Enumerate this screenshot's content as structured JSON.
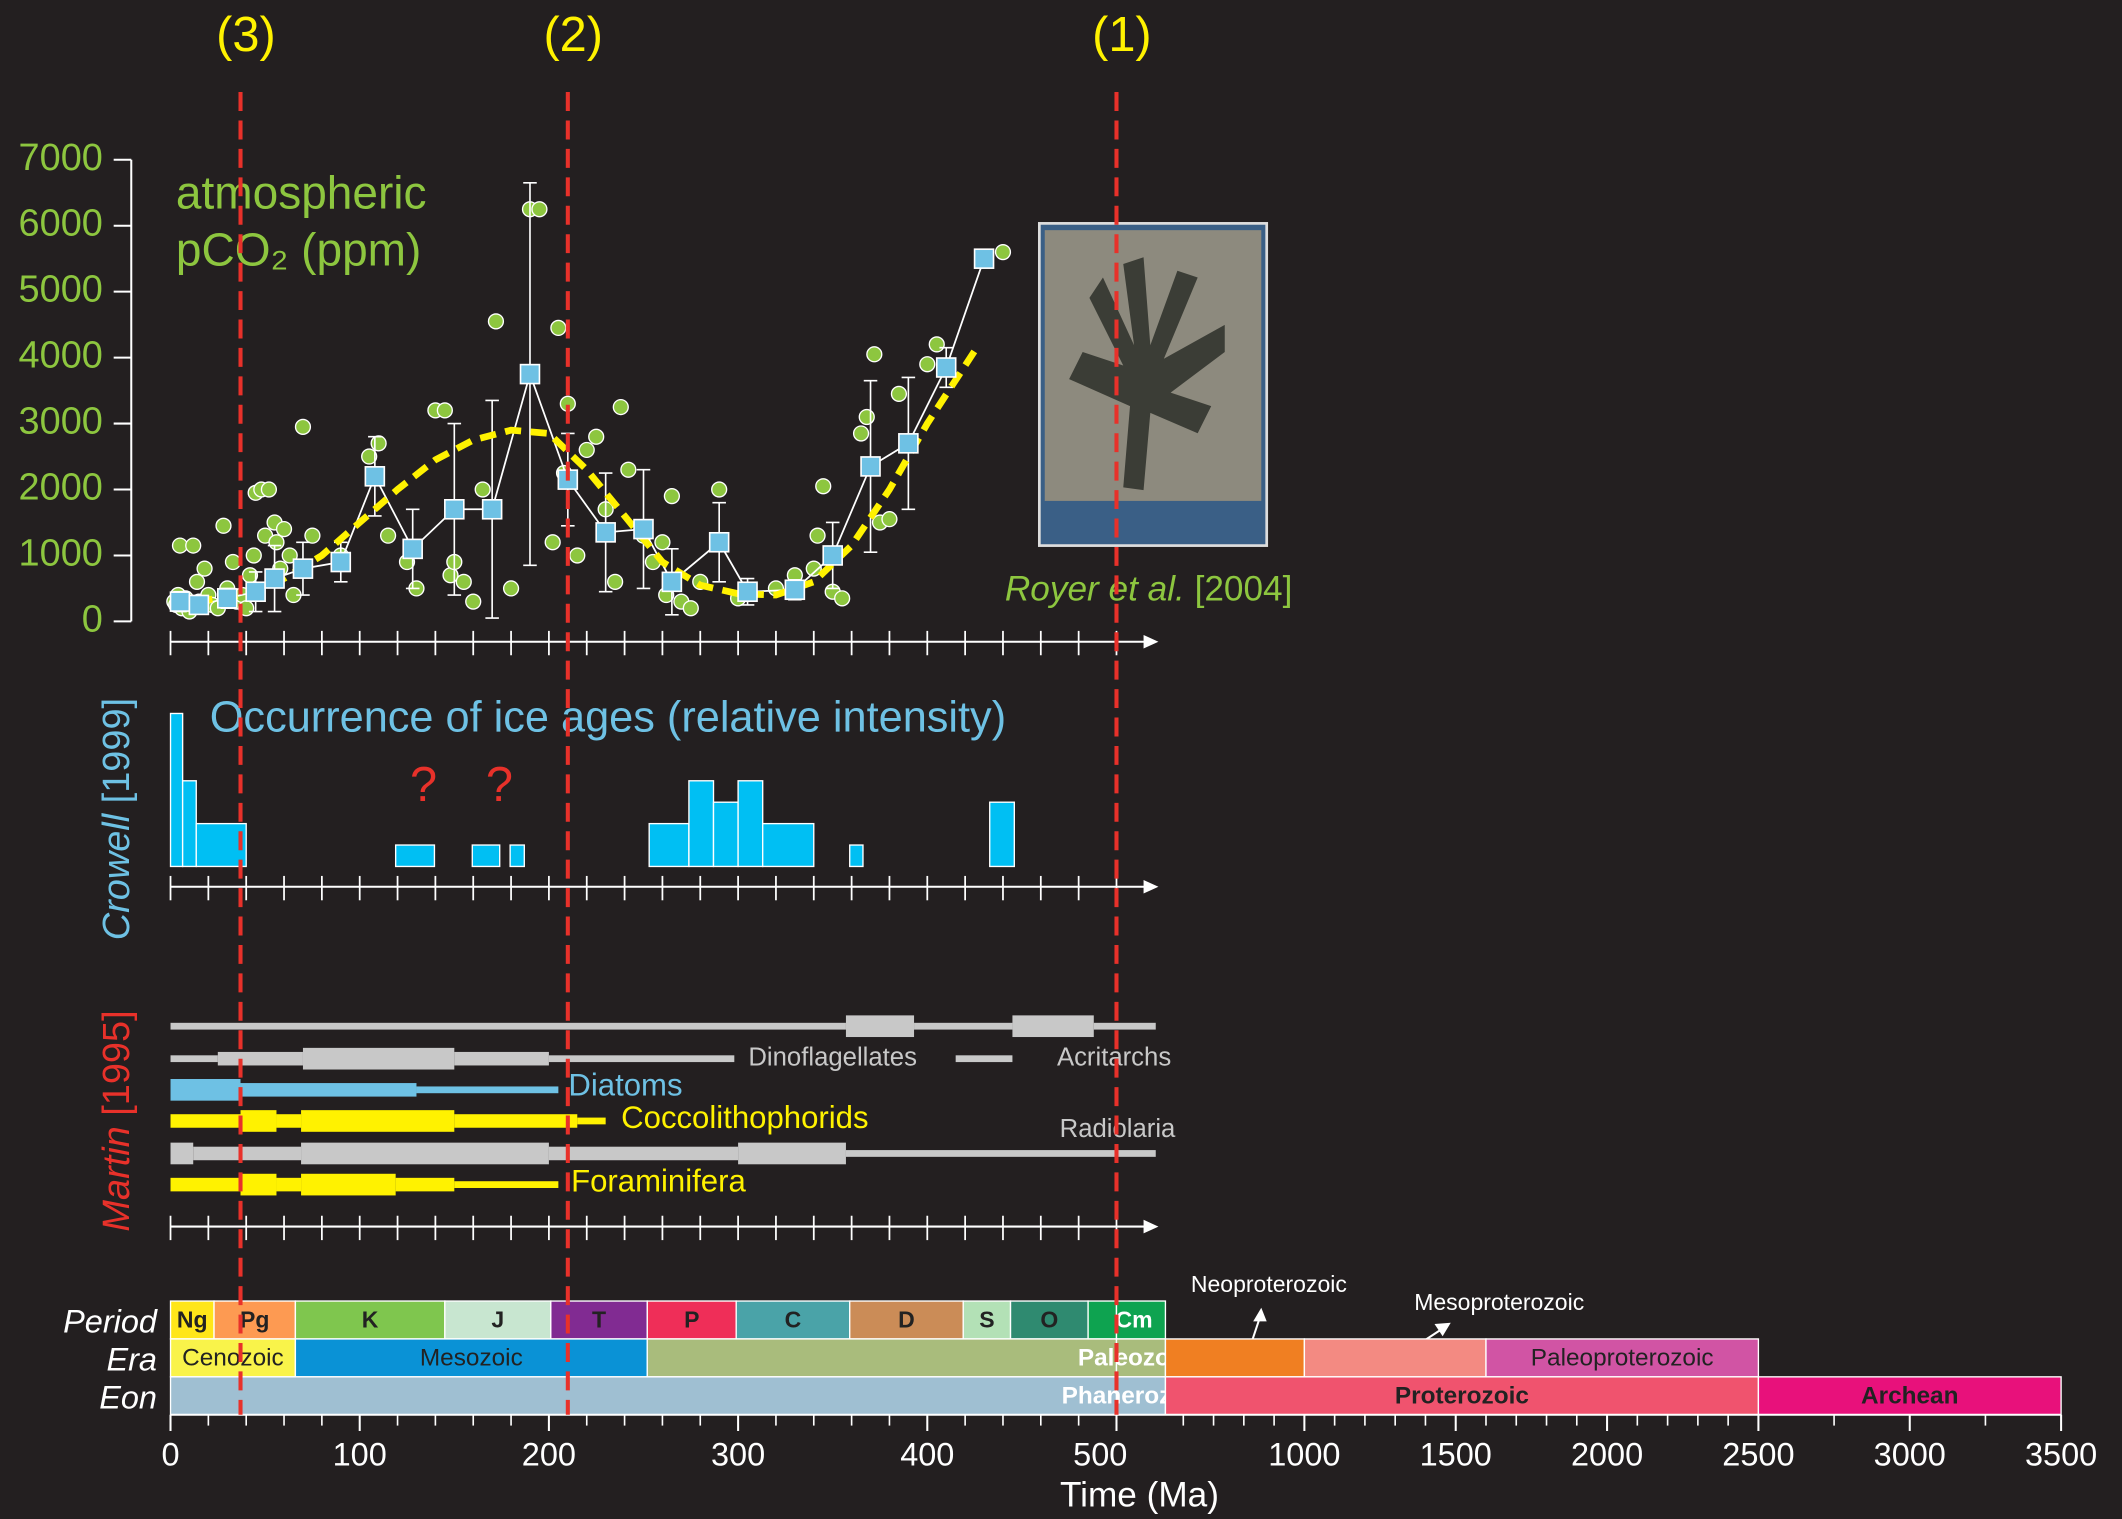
{
  "chart_data": [
    {
      "type": "scatter",
      "title": [
        "atmospheric",
        "pCO₂ (ppm)"
      ],
      "source": [
        "Royer et al.",
        "[2004]"
      ],
      "ylim": [
        0,
        7000
      ],
      "yticks": [
        0,
        1000,
        2000,
        3000,
        4000,
        5000,
        6000,
        7000
      ],
      "xlim": [
        0,
        500
      ],
      "xticks": [
        0,
        20,
        40,
        60,
        80,
        100,
        120,
        140,
        160,
        180,
        200,
        220,
        240,
        260,
        280,
        300,
        320,
        340,
        360,
        380,
        400,
        420,
        440,
        460,
        480,
        500
      ],
      "markers": [
        {
          "label": "(3)",
          "x": 37,
          "color": "#e8312a"
        },
        {
          "label": "(2)",
          "x": 210,
          "color": "#e8312a"
        },
        {
          "label": "(1)",
          "x": 500,
          "color": "#e8312a"
        }
      ],
      "proxies": {
        "color": "#8dc63f",
        "x": [
          2,
          3,
          4,
          5,
          6,
          8,
          10,
          12,
          14,
          15,
          18,
          20,
          22,
          25,
          28,
          30,
          33,
          35,
          38,
          40,
          42,
          44,
          45,
          48,
          50,
          52,
          55,
          56,
          58,
          60,
          63,
          65,
          70,
          75,
          90,
          105,
          110,
          115,
          125,
          130,
          140,
          145,
          148,
          150,
          155,
          160,
          165,
          172,
          180,
          190,
          195,
          202,
          205,
          208,
          210,
          215,
          220,
          225,
          230,
          235,
          238,
          242,
          250,
          255,
          260,
          262,
          265,
          270,
          275,
          280,
          290,
          300,
          305,
          320,
          330,
          340,
          342,
          345,
          350,
          355,
          365,
          368,
          372,
          375,
          380,
          385,
          400,
          405,
          440
        ],
        "values": [
          300,
          250,
          400,
          1150,
          200,
          350,
          150,
          1150,
          600,
          300,
          800,
          400,
          250,
          200,
          1450,
          500,
          900,
          300,
          400,
          200,
          700,
          1000,
          1950,
          2000,
          1300,
          2000,
          1500,
          1200,
          800,
          1400,
          1000,
          400,
          2950,
          1300,
          1000,
          2500,
          2700,
          1300,
          900,
          500,
          3200,
          3200,
          700,
          900,
          600,
          300,
          2000,
          4550,
          500,
          6250,
          6250,
          1200,
          4450,
          2250,
          3300,
          1000,
          2600,
          2800,
          1700,
          600,
          3250,
          2300,
          1300,
          900,
          1200,
          400,
          1900,
          300,
          200,
          600,
          2000,
          350,
          450,
          500,
          700,
          800,
          1300,
          2050,
          450,
          350,
          2850,
          3100,
          4050,
          1500,
          1550,
          3450,
          3900,
          4200,
          5600
        ]
      },
      "means": {
        "color": "#6ec1e4",
        "x": [
          5,
          15,
          30,
          45,
          55,
          70,
          90,
          108,
          128,
          150,
          170,
          190,
          210,
          230,
          250,
          265,
          290,
          305,
          330,
          350,
          370,
          390,
          410,
          430
        ],
        "values": [
          300,
          250,
          350,
          450,
          650,
          800,
          900,
          2200,
          1100,
          1700,
          1700,
          3750,
          2150,
          1350,
          1400,
          600,
          1200,
          450,
          480,
          1000,
          2350,
          2700,
          3850,
          5500
        ],
        "errors": [
          150,
          100,
          150,
          300,
          500,
          400,
          300,
          600,
          600,
          1300,
          1650,
          2900,
          700,
          900,
          900,
          500,
          600,
          200,
          150,
          500,
          1300,
          1000,
          300,
          100
        ]
      },
      "trend": {
        "color": "#fff200",
        "x": [
          0,
          20,
          40,
          60,
          80,
          100,
          120,
          140,
          160,
          180,
          200,
          220,
          240,
          260,
          280,
          300,
          320,
          340,
          360,
          380,
          400,
          425
        ],
        "values": [
          300,
          330,
          400,
          650,
          1000,
          1500,
          2000,
          2450,
          2750,
          2900,
          2850,
          2300,
          1600,
          900,
          550,
          420,
          400,
          600,
          1150,
          2000,
          3000,
          4100
        ]
      }
    },
    {
      "type": "bar",
      "title": "Occurrence of ice ages (relative intensity)",
      "source": [
        "Crowell",
        "[1999]"
      ],
      "annotations": [
        "?",
        "?"
      ],
      "ylim": [
        0,
        1
      ],
      "xlim": [
        0,
        500
      ],
      "xticks": [
        0,
        20,
        40,
        60,
        80,
        100,
        120,
        140,
        160,
        180,
        200,
        220,
        240,
        260,
        280,
        300,
        320,
        340,
        360,
        380,
        400,
        420,
        440,
        460,
        480,
        500
      ],
      "color": "#00bff3",
      "start": [
        0,
        6.4,
        13.6,
        119,
        159.5,
        179.5,
        253,
        274,
        287,
        300,
        313,
        359,
        433
      ],
      "end": [
        6.4,
        13.6,
        40,
        139.5,
        174,
        187,
        274,
        287,
        300,
        313,
        340,
        366,
        446
      ],
      "values": [
        1.0,
        0.56,
        0.28,
        0.14,
        0.14,
        0.14,
        0.28,
        0.56,
        0.42,
        0.56,
        0.28,
        0.14,
        0.42
      ]
    },
    {
      "type": "range",
      "source": [
        "Martin",
        "[1995]"
      ],
      "xlim": [
        0,
        500
      ],
      "xticks": [
        0,
        20,
        40,
        60,
        80,
        100,
        120,
        140,
        160,
        180,
        200,
        220,
        240,
        260,
        280,
        300,
        320,
        340,
        360,
        380,
        400,
        420,
        440,
        460,
        480,
        500
      ],
      "groups": [
        {
          "name": "Acritarchs",
          "color": "#c8c8c8",
          "segments": [
            {
              "start": 0,
              "end": 357,
              "weight": 1
            },
            {
              "start": 357,
              "end": 393,
              "weight": 3
            },
            {
              "start": 393,
              "end": 445,
              "weight": 1
            },
            {
              "start": 445,
              "end": 488,
              "weight": 3
            },
            {
              "start": 488,
              "end": 509,
              "weight": 1
            }
          ]
        },
        {
          "name": "Dinoflagellates",
          "color": "#c8c8c8",
          "segments": [
            {
              "start": 0,
              "end": 25,
              "weight": 1
            },
            {
              "start": 25,
              "end": 70,
              "weight": 2
            },
            {
              "start": 70,
              "end": 150,
              "weight": 3
            },
            {
              "start": 150,
              "end": 200,
              "weight": 2
            },
            {
              "start": 200,
              "end": 298,
              "weight": 1
            },
            {
              "start": 415,
              "end": 445,
              "weight": 1
            }
          ]
        },
        {
          "name": "Diatoms",
          "color": "#6ec1e4",
          "segments": [
            {
              "start": 0,
              "end": 37,
              "weight": 3
            },
            {
              "start": 37,
              "end": 130,
              "weight": 2
            },
            {
              "start": 130,
              "end": 205,
              "weight": 1
            }
          ]
        },
        {
          "name": "Coccolithophorids",
          "color": "#fff200",
          "segments": [
            {
              "start": 0,
              "end": 37,
              "weight": 2
            },
            {
              "start": 37,
              "end": 56,
              "weight": 3
            },
            {
              "start": 56,
              "end": 69,
              "weight": 2
            },
            {
              "start": 69,
              "end": 150,
              "weight": 3
            },
            {
              "start": 150,
              "end": 215,
              "weight": 2
            },
            {
              "start": 215,
              "end": 230,
              "weight": 1
            }
          ]
        },
        {
          "name": "Radiolaria",
          "color": "#c8c8c8",
          "segments": [
            {
              "start": 0,
              "end": 12,
              "weight": 3
            },
            {
              "start": 12,
              "end": 69,
              "weight": 2
            },
            {
              "start": 69,
              "end": 200,
              "weight": 3
            },
            {
              "start": 200,
              "end": 300,
              "weight": 2
            },
            {
              "start": 300,
              "end": 357,
              "weight": 3
            },
            {
              "start": 357,
              "end": 509,
              "weight": 1
            }
          ]
        },
        {
          "name": "Foraminifera",
          "color": "#fff200",
          "segments": [
            {
              "start": 0,
              "end": 37,
              "weight": 2
            },
            {
              "start": 37,
              "end": 56,
              "weight": 3
            },
            {
              "start": 56,
              "end": 69,
              "weight": 2
            },
            {
              "start": 69,
              "end": 119,
              "weight": 3
            },
            {
              "start": 119,
              "end": 150,
              "weight": 2
            },
            {
              "start": 150,
              "end": 205,
              "weight": 1
            }
          ]
        }
      ]
    },
    {
      "type": "timescale",
      "xlabel": "Time (Ma)",
      "xlim": [
        0,
        500
      ],
      "xticks": [
        0,
        100,
        200,
        300,
        400
      ],
      "xminor": [
        20,
        40,
        60,
        80,
        120,
        140,
        160,
        180,
        220,
        240,
        260,
        280,
        320,
        340,
        360,
        380,
        420,
        440,
        460,
        480,
        500
      ],
      "x2lim": [
        500,
        3500
      ],
      "x2ticks": [
        500,
        1000,
        1500,
        2000,
        2500,
        3000,
        3500
      ],
      "x2minor": [
        600,
        700,
        800,
        900,
        1100,
        1200,
        1300,
        1400,
        1600,
        1700,
        1800,
        1900,
        2100,
        2200,
        2300,
        2400,
        2750,
        3250
      ],
      "rows": [
        {
          "name": "Period",
          "units": [
            {
              "label": "Ng",
              "start": 0,
              "end": 23,
              "color": "#ffe619"
            },
            {
              "label": "Pg",
              "start": 23,
              "end": 66,
              "color": "#fd9a52"
            },
            {
              "label": "K",
              "start": 66,
              "end": 145,
              "color": "#7fc64e"
            },
            {
              "label": "J",
              "start": 145,
              "end": 201,
              "color": "#c8e6d0"
            },
            {
              "label": "T",
              "start": 201,
              "end": 252,
              "color": "#812b92"
            },
            {
              "label": "P",
              "start": 252,
              "end": 299,
              "color": "#ef2e58"
            },
            {
              "label": "C",
              "start": 299,
              "end": 359,
              "color": "#4aa3a8"
            },
            {
              "label": "D",
              "start": 359,
              "end": 419,
              "color": "#cb8c57"
            },
            {
              "label": "S",
              "start": 419,
              "end": 444,
              "color": "#b3e1b6"
            },
            {
              "label": "O",
              "start": 444,
              "end": 485,
              "color": "#2f8a70"
            },
            {
              "label": "Cm",
              "start": 485,
              "end": 541,
              "color": "#0ea350"
            }
          ]
        },
        {
          "name": "Era",
          "units": [
            {
              "label": "Cenozoic",
              "start": 0,
              "end": 66,
              "color": "#f9f34a"
            },
            {
              "label": "Mesozoic",
              "start": 66,
              "end": 252,
              "color": "#0a92d6"
            },
            {
              "label": "Paleozoic",
              "start": 252,
              "end": 541,
              "color": "#a9bc7c"
            },
            {
              "label": "Neoproterozoic",
              "start": 541,
              "end": 1000,
              "color": "#f07f22"
            },
            {
              "label": "Mesoproterozoic",
              "start": 1000,
              "end": 1600,
              "color": "#f38a82"
            },
            {
              "label": "Paleoproterozoic",
              "start": 1600,
              "end": 2500,
              "color": "#d154a4"
            }
          ]
        },
        {
          "name": "Eon",
          "units": [
            {
              "label": "Phanerozoic",
              "start": 0,
              "end": 541,
              "color": "#9fbfd2"
            },
            {
              "label": "Proterozoic",
              "start": 541,
              "end": 2500,
              "color": "#f0536e"
            },
            {
              "label": "Archean",
              "start": 2500,
              "end": 3500,
              "color": "#e8117b"
            }
          ]
        }
      ]
    }
  ]
}
